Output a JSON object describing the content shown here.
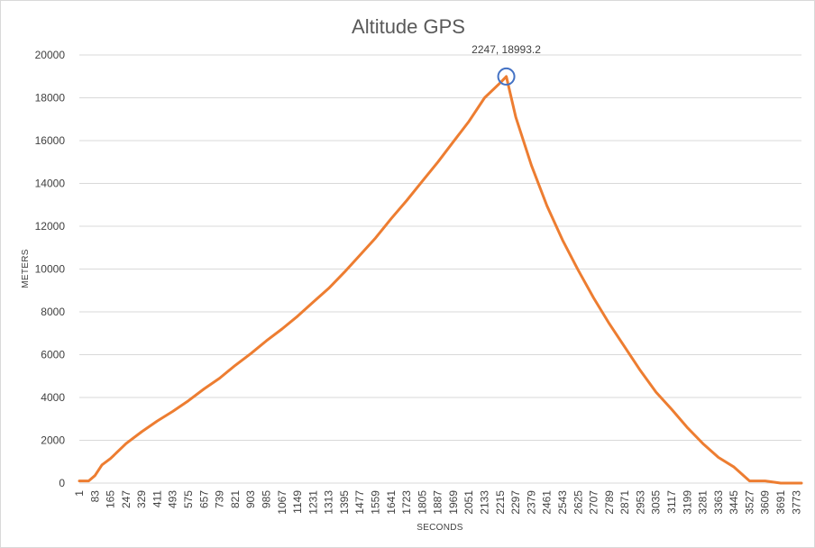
{
  "chart_data": {
    "type": "line",
    "title": "Altitude GPS",
    "xlabel": "SECONDS",
    "ylabel": "METERS",
    "ylim": [
      0,
      20000
    ],
    "xlim": [
      1,
      3800
    ],
    "yticks": [
      0,
      2000,
      4000,
      6000,
      8000,
      10000,
      12000,
      14000,
      16000,
      18000,
      20000
    ],
    "xticks": [
      1,
      83,
      165,
      247,
      329,
      411,
      493,
      575,
      657,
      739,
      821,
      903,
      985,
      1067,
      1149,
      1231,
      1313,
      1395,
      1477,
      1559,
      1641,
      1723,
      1805,
      1887,
      1969,
      2051,
      2133,
      2215,
      2297,
      2379,
      2461,
      2543,
      2625,
      2707,
      2789,
      2871,
      2953,
      3035,
      3117,
      3199,
      3281,
      3363,
      3445,
      3527,
      3609,
      3691,
      3773
    ],
    "grid": true,
    "series": [
      {
        "color": "#ed7d31",
        "x": [
          1,
          50,
          83,
          120,
          165,
          247,
          329,
          411,
          493,
          575,
          657,
          739,
          821,
          903,
          985,
          1067,
          1149,
          1231,
          1313,
          1395,
          1477,
          1559,
          1641,
          1723,
          1805,
          1887,
          1969,
          2051,
          2133,
          2215,
          2247,
          2297,
          2379,
          2461,
          2543,
          2625,
          2707,
          2789,
          2871,
          2953,
          3035,
          3117,
          3199,
          3281,
          3363,
          3445,
          3527,
          3609,
          3691,
          3740,
          3773,
          3800
        ],
        "y": [
          100,
          100,
          350,
          850,
          1150,
          1850,
          2400,
          2900,
          3350,
          3850,
          4400,
          4900,
          5500,
          6050,
          6650,
          7200,
          7800,
          8450,
          9100,
          9850,
          10650,
          11450,
          12350,
          13200,
          14100,
          15000,
          15950,
          16900,
          18000,
          18700,
          18993.2,
          17100,
          14850,
          12950,
          11350,
          9950,
          8650,
          7450,
          6350,
          5250,
          4250,
          3450,
          2600,
          1850,
          1200,
          750,
          100,
          100,
          0,
          0,
          0,
          0
        ]
      }
    ],
    "annotation": {
      "label": "2247, 18993.2",
      "x": 2247,
      "y": 18993.2,
      "marker_color": "#4472c4"
    }
  }
}
